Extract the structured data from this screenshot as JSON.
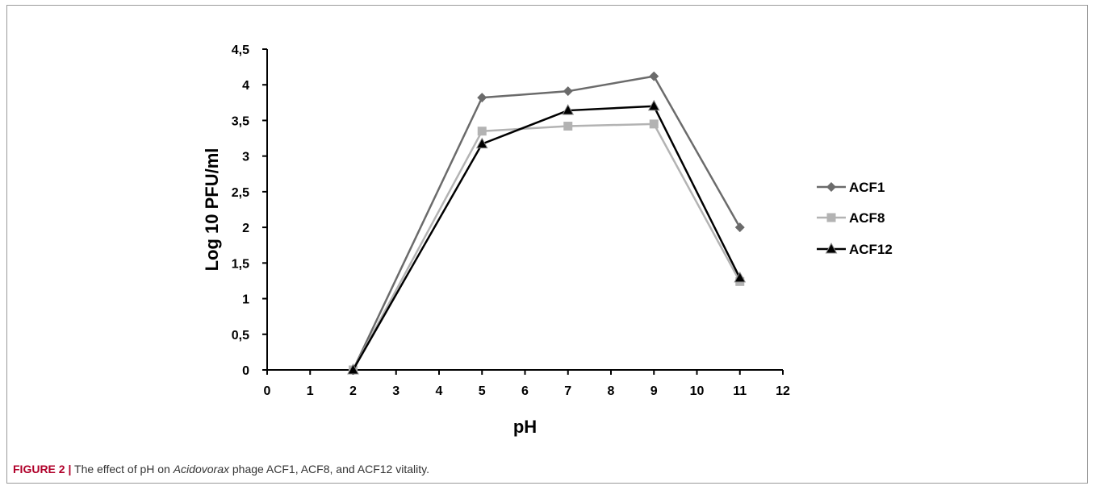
{
  "chart_data": {
    "type": "line",
    "xlabel": "pH",
    "ylabel": "Log 10 PFU/ml",
    "xlim": [
      0,
      12
    ],
    "ylim": [
      0,
      4.5
    ],
    "xticks": [
      "0",
      "1",
      "2",
      "3",
      "4",
      "5",
      "6",
      "7",
      "8",
      "9",
      "10",
      "11",
      "12"
    ],
    "yticks": [
      "0",
      "0,5",
      "1",
      "1,5",
      "2",
      "2,5",
      "3",
      "3,5",
      "4",
      "4,5"
    ],
    "grid": false,
    "legend_position": "right",
    "series": [
      {
        "name": "ACF1",
        "marker": "diamond",
        "color": "#6b6b6b",
        "x": [
          2,
          5,
          7,
          9,
          11
        ],
        "y": [
          0,
          3.82,
          3.91,
          4.12,
          2.0
        ]
      },
      {
        "name": "ACF8",
        "marker": "square",
        "color": "#b3b3b3",
        "x": [
          2,
          5,
          7,
          9,
          11
        ],
        "y": [
          0,
          3.35,
          3.42,
          3.45,
          1.24
        ]
      },
      {
        "name": "ACF12",
        "marker": "triangle",
        "color": "#000000",
        "x": [
          2,
          5,
          7,
          9,
          11
        ],
        "y": [
          0,
          3.17,
          3.64,
          3.7,
          1.29
        ]
      }
    ]
  },
  "caption": {
    "label": "FIGURE 2 |",
    "text_before": " The effect of pH on ",
    "italic": "Acidovorax",
    "text_after": " phage ACF1, ACF8, and ACF12 vitality."
  }
}
